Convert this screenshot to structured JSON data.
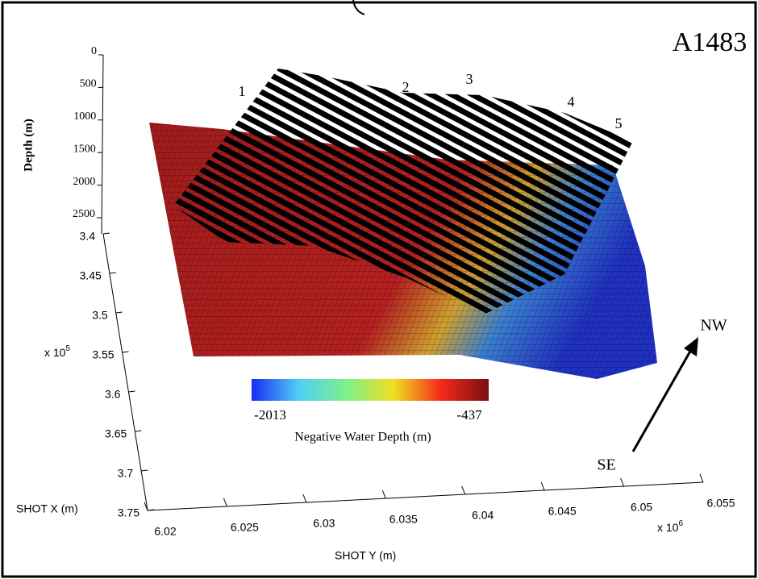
{
  "chart_data": {
    "type": "surface3d",
    "title": "A1483",
    "zlabel": "Depth (m)",
    "xlabel": "SHOT X (m)",
    "ylabel": "SHOT Y (m)",
    "xscale_base": "x 10",
    "xscale_exp": "5",
    "yscale_base": "x 10",
    "yscale_exp": "6",
    "zlim": [
      0,
      2500
    ],
    "zticks": [
      0,
      500,
      1000,
      1500,
      2000,
      2500
    ],
    "xlim": [
      3.4,
      3.75
    ],
    "xticks": [
      3.4,
      3.45,
      3.5,
      3.55,
      3.6,
      3.65,
      3.7,
      3.75
    ],
    "ylim": [
      6.02,
      6.055
    ],
    "yticks": [
      6.02,
      6.025,
      6.03,
      6.035,
      6.04,
      6.045,
      6.05,
      6.055
    ],
    "line_labels": [
      "1",
      "2",
      "3",
      "4",
      "5"
    ],
    "colorbar": {
      "label": "Negative Water Depth (m)",
      "min": -2013,
      "max": -437,
      "colors": [
        "#1a2cf0",
        "#4fd0f5",
        "#7ef08a",
        "#f0e020",
        "#f5281a",
        "#7a1010"
      ]
    },
    "direction_labels": [
      "NW",
      "SE"
    ]
  }
}
